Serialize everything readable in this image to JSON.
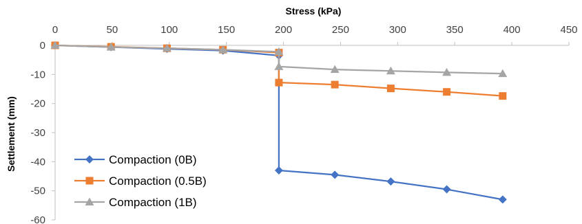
{
  "chart_data": {
    "type": "line",
    "xlabel": "Stress (kPa)",
    "ylabel": "Settlement (mm)",
    "xlim": [
      0,
      450
    ],
    "ylim": [
      -60,
      0
    ],
    "x_axis_position": "top",
    "y_axis_inverted": true,
    "x_ticks": [
      "0",
      "50",
      "100",
      "150",
      "200",
      "250",
      "300",
      "350",
      "400",
      "450"
    ],
    "y_ticks": [
      "0",
      "-10",
      "-20",
      "-30",
      "-40",
      "-50",
      "-60"
    ],
    "grid": false,
    "legend_position": "bottom-left",
    "series": [
      {
        "name": "Compaction (0B)",
        "color": "#4472C4",
        "marker": "diamond",
        "points": [
          [
            0,
            0
          ],
          [
            49,
            -0.6
          ],
          [
            98,
            -1.2
          ],
          [
            147,
            -1.8
          ],
          [
            196,
            -3.5
          ],
          [
            196,
            -43
          ],
          [
            245,
            -44.5
          ],
          [
            294,
            -46.8
          ],
          [
            343,
            -49.5
          ],
          [
            392,
            -53
          ]
        ]
      },
      {
        "name": "Compaction (0.5B)",
        "color": "#ED7D31",
        "marker": "square",
        "points": [
          [
            0,
            0
          ],
          [
            49,
            -0.5
          ],
          [
            98,
            -1.0
          ],
          [
            147,
            -1.5
          ],
          [
            196,
            -2.5
          ],
          [
            196,
            -12.8
          ],
          [
            245,
            -13.5
          ],
          [
            294,
            -14.8
          ],
          [
            343,
            -16
          ],
          [
            392,
            -17.4
          ]
        ]
      },
      {
        "name": "Compaction (1B)",
        "color": "#A5A5A5",
        "marker": "triangle",
        "points": [
          [
            0,
            0
          ],
          [
            49,
            -0.6
          ],
          [
            98,
            -1.0
          ],
          [
            147,
            -1.5
          ],
          [
            196,
            -2.2
          ],
          [
            196,
            -7.3
          ],
          [
            245,
            -8.3
          ],
          [
            294,
            -8.8
          ],
          [
            343,
            -9.3
          ],
          [
            392,
            -9.7
          ]
        ]
      }
    ]
  }
}
